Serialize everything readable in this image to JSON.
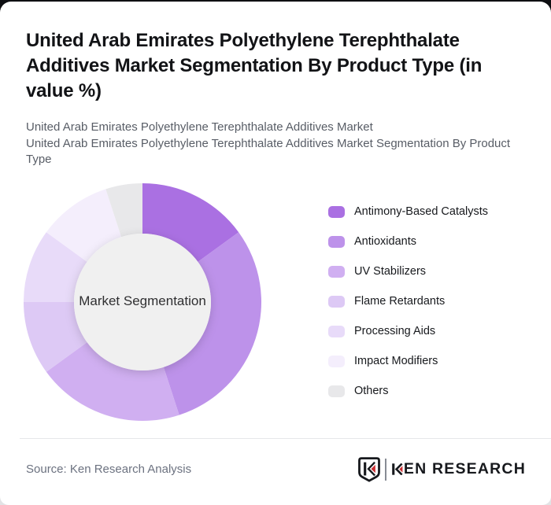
{
  "page": {
    "background_dark": "#0e0f12",
    "card_background": "#ffffff"
  },
  "header": {
    "title": "United Arab Emirates Polyethylene Terephthalate Additives Market Segmentation By Product Type (in value %)",
    "subtitle_line1": "United Arab Emirates Polyethylene Terephthalate Additives Market",
    "subtitle_line2": "United Arab Emirates Polyethylene Terephthalate Additives Market Segmentation By Product Type"
  },
  "chart_data": {
    "type": "pie",
    "variant": "donut",
    "units": "value %",
    "start_angle_deg": 0,
    "direction": "clockwise",
    "legend_position": "right",
    "center_label": "Market Segmentation",
    "inner_circle_color": "#f0f0f0",
    "outer_radius_px": 151,
    "inner_radius_px": 87,
    "segments": [
      {
        "label": "Antimony-Based Catalysts",
        "value": 15,
        "color": "#aa70e2"
      },
      {
        "label": "Antioxidants",
        "value": 30,
        "color": "#bd92ea"
      },
      {
        "label": "UV Stabilizers",
        "value": 20,
        "color": "#d0aff1"
      },
      {
        "label": "Flame Retardants",
        "value": 10,
        "color": "#ddc9f5"
      },
      {
        "label": "Processing Aids",
        "value": 10,
        "color": "#e8dbf9"
      },
      {
        "label": "Impact Modifiers",
        "value": 10,
        "color": "#f4eefc"
      },
      {
        "label": "Others",
        "value": 5,
        "color": "#e8e8ea"
      }
    ]
  },
  "footer": {
    "source": "Source: Ken Research Analysis",
    "logo_text": "KEN RESEARCH",
    "logo_black": "#17191d",
    "logo_red": "#cb2c30"
  }
}
